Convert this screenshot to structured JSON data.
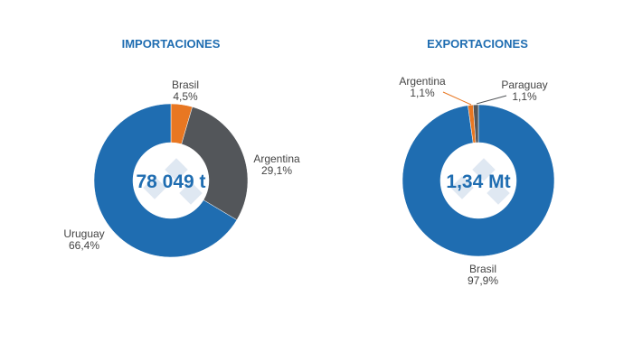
{
  "chart_data": [
    {
      "type": "pie",
      "variant": "donut",
      "title": "IMPORTACIONES",
      "center_label": "78 049 t",
      "unit": "%",
      "slices": [
        {
          "label": "Brasil",
          "value": 4.5,
          "value_label": "4,5%",
          "color": "#e87722"
        },
        {
          "label": "Argentina",
          "value": 29.1,
          "value_label": "29,1%",
          "color": "#53565a"
        },
        {
          "label": "Uruguay",
          "value": 66.4,
          "value_label": "66,4%",
          "color": "#1f6db1"
        }
      ]
    },
    {
      "type": "pie",
      "variant": "donut",
      "title": "EXPORTACIONES",
      "center_label": "1,34 Mt",
      "unit": "%",
      "slices": [
        {
          "label": "Brasil",
          "value": 97.9,
          "value_label": "97,9%",
          "color": "#1f6db1"
        },
        {
          "label": "Argentina",
          "value": 1.1,
          "value_label": "1,1%",
          "color": "#e87722"
        },
        {
          "label": "Paraguay",
          "value": 1.1,
          "value_label": "1,1%",
          "color": "#53565a"
        }
      ]
    }
  ]
}
